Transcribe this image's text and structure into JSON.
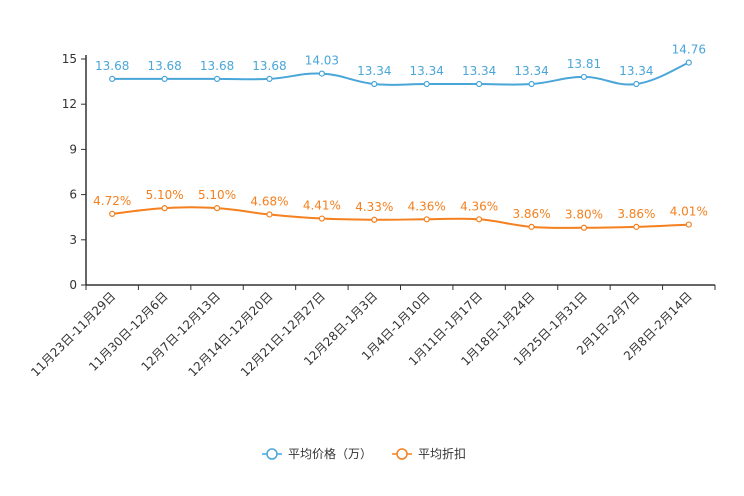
{
  "chart_data": {
    "type": "line",
    "categories": [
      "11月23日-11月29日",
      "11月30日-12月6日",
      "12月7日-12月13日",
      "12月14日-12月20日",
      "12月21日-12月27日",
      "12月28日-1月3日",
      "1月4日-1月10日",
      "1月11日-1月17日",
      "1月18日-1月24日",
      "1月25日-1月31日",
      "2月1日-2月7日",
      "2月8日-2月14日"
    ],
    "series": [
      {
        "name": "平均价格（万）",
        "color": "#4aa6d8",
        "values": [
          13.68,
          13.68,
          13.68,
          13.68,
          14.03,
          13.34,
          13.34,
          13.34,
          13.34,
          13.81,
          13.34,
          14.76
        ],
        "labels": [
          "13.68",
          "13.68",
          "13.68",
          "13.68",
          "14.03",
          "13.34",
          "13.34",
          "13.34",
          "13.34",
          "13.81",
          "13.34",
          "14.76"
        ]
      },
      {
        "name": "平均折扣",
        "color": "#f4801f",
        "values": [
          4.72,
          5.1,
          5.1,
          4.68,
          4.41,
          4.33,
          4.36,
          4.36,
          3.86,
          3.8,
          3.86,
          4.01
        ],
        "labels": [
          "4.72%",
          "5.10%",
          "5.10%",
          "4.68%",
          "4.41%",
          "4.33%",
          "4.36%",
          "4.36%",
          "3.86%",
          "3.80%",
          "3.86%",
          "4.01%"
        ]
      }
    ],
    "y_ticks": [
      "0",
      "3",
      "6",
      "9",
      "12",
      "15"
    ],
    "ylim": [
      0,
      15
    ],
    "legend_position": "bottom-center",
    "title": "",
    "xlabel": "",
    "ylabel": ""
  }
}
